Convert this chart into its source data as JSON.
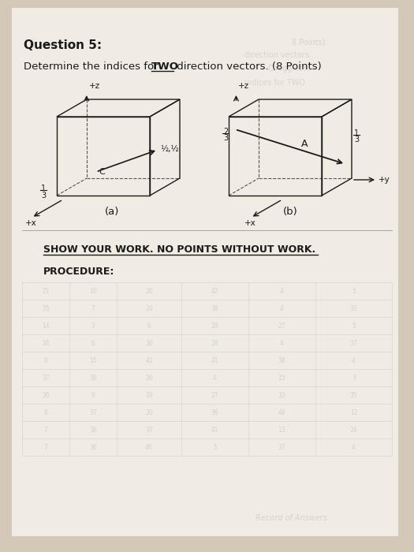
{
  "bg_color": "#d4c9b8",
  "paper_color": "#f0ece4",
  "title": "Question 5:",
  "subtitle_pre": "Determine the indices for ",
  "subtitle_two": "TWO",
  "subtitle_post": " direction vectors. (8 Points)",
  "label_a": "(a)",
  "label_b": "(b)",
  "show_work": "SHOW YOUR WORK. NO POINTS WITHOUT WORK.",
  "procedure": "PROCEDURE:",
  "text_color": "#1a1a1a",
  "line_color": "#1a1a1a",
  "dashed_color": "#555555",
  "ghost_text_color": "#999999",
  "table_rows": 10
}
